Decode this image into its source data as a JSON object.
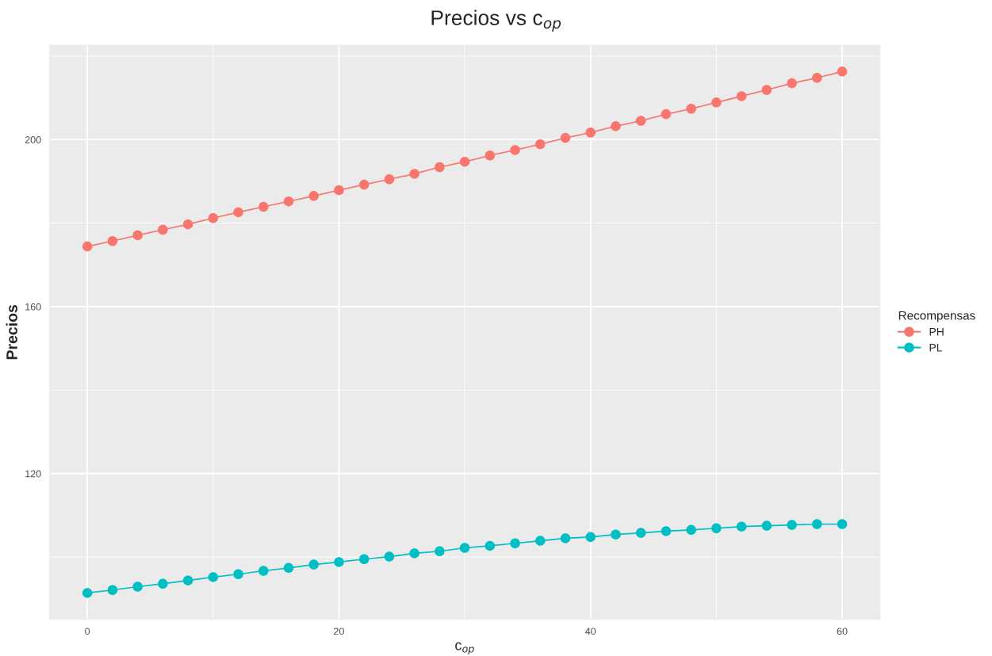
{
  "chart_data": {
    "type": "line",
    "title": "Precios vs c$_{op}$",
    "xlabel": "c$_{op}$",
    "ylabel": "Precios",
    "legend_title": "Recompensas",
    "x": [
      0,
      2,
      4,
      6,
      8,
      10,
      12,
      14,
      16,
      18,
      20,
      22,
      24,
      26,
      28,
      30,
      32,
      34,
      36,
      38,
      40,
      42,
      44,
      46,
      48,
      50,
      52,
      54,
      56,
      58,
      60
    ],
    "series": [
      {
        "name": "PH",
        "color": "#f8766d",
        "values": [
          174.4,
          175.7,
          177.1,
          178.4,
          179.7,
          181.2,
          182.6,
          183.9,
          185.2,
          186.5,
          187.9,
          189.2,
          190.5,
          191.8,
          193.4,
          194.7,
          196.2,
          197.5,
          198.9,
          200.4,
          201.7,
          203.2,
          204.5,
          206.1,
          207.4,
          208.9,
          210.4,
          211.9,
          213.5,
          214.8,
          216.3
        ]
      },
      {
        "name": "PL",
        "color": "#00bfc4",
        "values": [
          91.4,
          92.1,
          92.9,
          93.6,
          94.4,
          95.2,
          95.9,
          96.7,
          97.4,
          98.2,
          98.8,
          99.5,
          100.1,
          100.9,
          101.4,
          102.2,
          102.7,
          103.3,
          103.9,
          104.5,
          104.8,
          105.4,
          105.8,
          106.2,
          106.5,
          106.9,
          107.3,
          107.5,
          107.7,
          107.9,
          107.9
        ]
      }
    ],
    "xlim": [
      -3,
      63
    ],
    "ylim": [
      85.1,
      222.6
    ],
    "xticks": [
      0,
      20,
      40,
      60
    ],
    "yticks": [
      120,
      160,
      200
    ],
    "grid": true,
    "legend": "right",
    "marker": "circle",
    "line_style": "solid"
  }
}
